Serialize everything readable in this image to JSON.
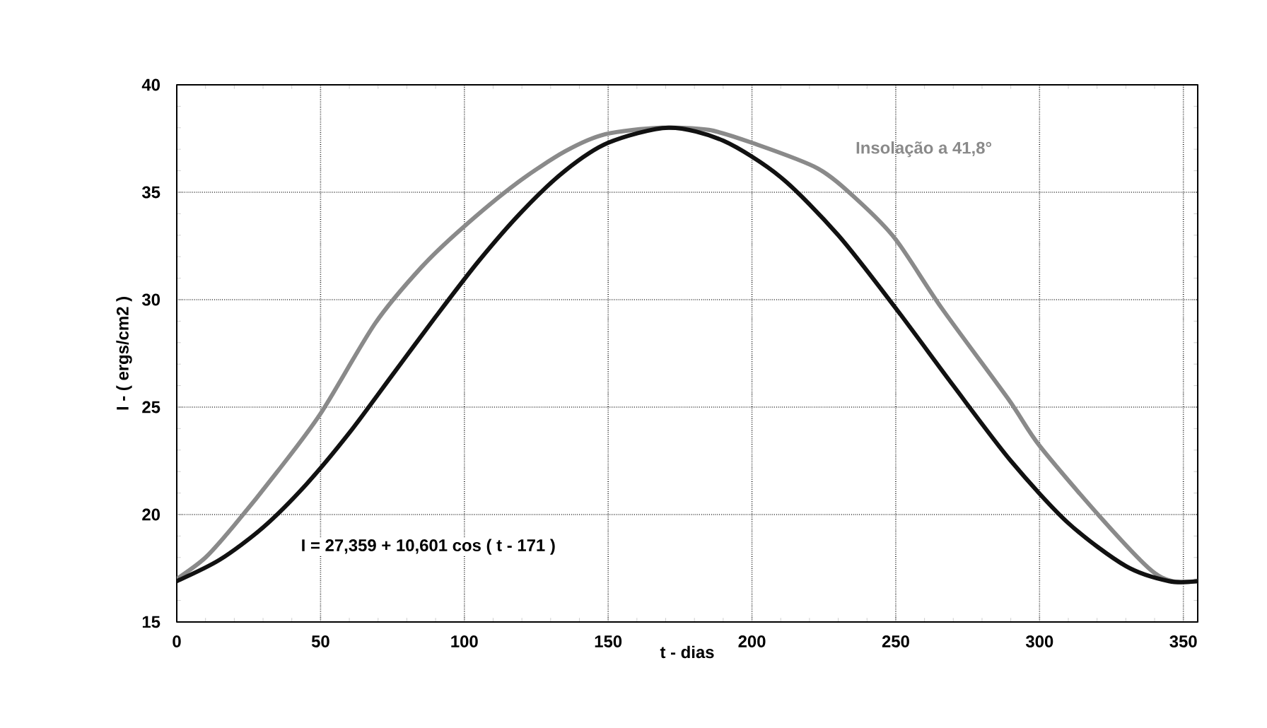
{
  "chart_data": {
    "type": "line",
    "xlabel": "t - dias",
    "ylabel": "I - ( ergs/cm2 )",
    "annotations": [
      "I = 27,359 + 10,601 cos ( t - 171 )"
    ],
    "xlim": [
      0,
      355
    ],
    "xticks": [
      0,
      50,
      100,
      150,
      200,
      250,
      300,
      350
    ],
    "ylim": [
      15,
      40
    ],
    "yticks": [
      15,
      20,
      25,
      30,
      35,
      40
    ],
    "grid": true,
    "legend": false,
    "marker": "none",
    "line_style": "solid",
    "series": [
      {
        "name": "Insolação a 41,8°",
        "color": "#8a8a8a",
        "x": [
          0,
          10,
          20,
          35,
          50,
          69,
          85,
          99,
          118,
          135,
          149,
          168,
          185,
          200,
          223,
          237,
          250,
          266,
          289,
          300,
          321,
          338,
          346,
          355
        ],
        "values": [
          17.0,
          18.0,
          19.5,
          22.0,
          24.7,
          28.9,
          31.5,
          33.3,
          35.4,
          36.9,
          37.7,
          38.0,
          37.9,
          37.3,
          36.1,
          34.6,
          32.8,
          29.6,
          25.4,
          23.2,
          19.9,
          17.5,
          16.9,
          16.9
        ]
      },
      {
        "color": "#111111",
        "x": [
          0,
          15,
          30,
          45,
          60,
          75,
          90,
          105,
          120,
          135,
          150,
          171,
          190,
          210,
          230,
          250,
          270,
          290,
          310,
          330,
          345,
          355
        ],
        "values": [
          16.9,
          17.9,
          19.4,
          21.4,
          23.8,
          26.5,
          29.2,
          31.8,
          34.1,
          36.0,
          37.3,
          38.0,
          37.4,
          35.7,
          33.0,
          29.6,
          26.0,
          22.5,
          19.6,
          17.6,
          16.9,
          16.9
        ]
      }
    ]
  }
}
